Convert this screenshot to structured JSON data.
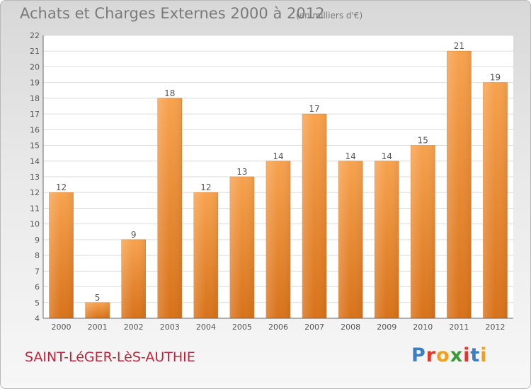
{
  "header": {
    "title": "Achats et Charges Externes 2000 à 2012",
    "subtitle": "(en milliers d'€)"
  },
  "footer": {
    "commune": "SAINT-LéGER-LèS-AUTHIE",
    "logo": "Proxiti",
    "logo_colors": [
      "#3a7fc4",
      "#e0382c",
      "#f0a020",
      "#3a9a3a",
      "#e0382c",
      "#3a7fc4",
      "#f0a020"
    ]
  },
  "chart_data": {
    "type": "bar",
    "title": "Achats et Charges Externes 2000 à 2012",
    "subtitle": "(en milliers d'€)",
    "categories": [
      "2000",
      "2001",
      "2002",
      "2003",
      "2004",
      "2005",
      "2006",
      "2007",
      "2008",
      "2009",
      "2010",
      "2011",
      "2012"
    ],
    "values": [
      12,
      5,
      9,
      18,
      12,
      13,
      14,
      17,
      14,
      14,
      15,
      21,
      19
    ],
    "ylim": [
      4,
      22
    ],
    "yticks": [
      4,
      5,
      6,
      7,
      8,
      9,
      10,
      11,
      12,
      13,
      14,
      15,
      16,
      17,
      18,
      19,
      20,
      21,
      22
    ],
    "grid": true,
    "bar_color": "#f0963c",
    "xlabel": "",
    "ylabel": ""
  }
}
